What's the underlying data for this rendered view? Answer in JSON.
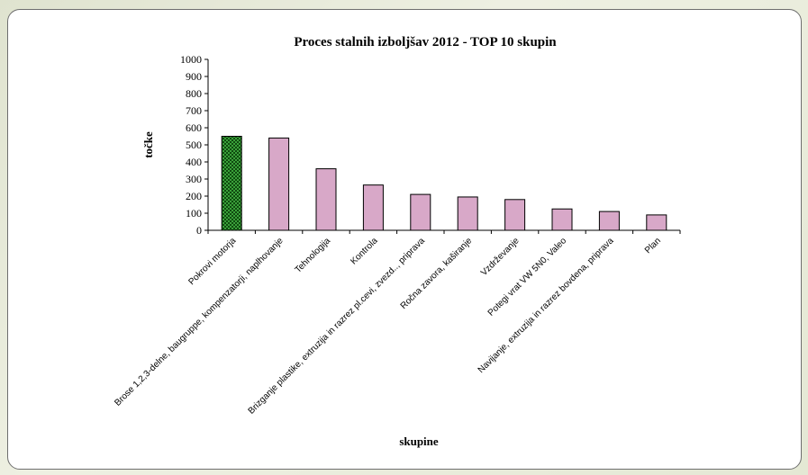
{
  "chart_data": {
    "type": "bar",
    "title": "Proces stalnih izboljšav 2012 - TOP 10 skupin",
    "xlabel": "skupine",
    "ylabel": "točke",
    "ylim": [
      0,
      1000
    ],
    "yticks": [
      0,
      100,
      200,
      300,
      400,
      500,
      600,
      700,
      800,
      900,
      1000
    ],
    "categories": [
      "Pokrovi motorja",
      "Brose 1,2,3-delne, baugruppe, kompenzatorji, naplhovanje",
      "Tehnologija",
      "Kontrola",
      "Brizganje plastike, extruzija in razrez pl.cevi, zvezd.., priprava",
      "Ročna zavora, kaširanje",
      "Vzdrževanje",
      "Potegi vrat VW 5N0, Valeo",
      "Navijanje, extruzija in razrez bovdena, priprava",
      "Plan"
    ],
    "values": [
      550,
      540,
      360,
      265,
      210,
      195,
      180,
      125,
      110,
      90
    ],
    "bar_color": "#d8a8c8",
    "highlight_color": "#2e8b2e",
    "highlight_index": 0,
    "grid": false,
    "legend": "none"
  }
}
